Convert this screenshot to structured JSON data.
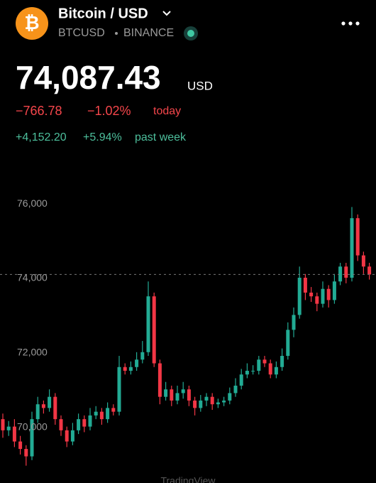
{
  "header": {
    "logo": "₿",
    "title": "Bitcoin / USD",
    "symbol": "BTCUSD",
    "exchange": "BINANCE",
    "price": {
      "value": 74087.43,
      "label": "74,087.43"
    },
    "currency": "USD",
    "day_change": "−766.78",
    "day_change_pct": "−1.02%",
    "day_label": "today",
    "week_change": "+4,152.20",
    "week_change_pct": "+5.94%",
    "week_label": "past week"
  },
  "chart_data": {
    "type": "candlestick",
    "up_color": "#22ab94",
    "down_color": "#f23645",
    "ylim": [
      68500,
      76500
    ],
    "yticks": [
      {
        "value": 70000,
        "label": "70,000"
      },
      {
        "value": 72000,
        "label": "72,000"
      },
      {
        "value": 74000,
        "label": "74,000"
      },
      {
        "value": 76000,
        "label": "76,000"
      }
    ],
    "open": [
      70200,
      69900,
      70000,
      69600,
      69400,
      69200,
      70200,
      70600,
      70500,
      70800,
      70200,
      69900,
      69600,
      69900,
      70200,
      70000,
      70300,
      70400,
      70200,
      70500,
      70400,
      71600,
      71500,
      71600,
      71800,
      72000,
      73500,
      71700,
      70800,
      71000,
      70700,
      70900,
      71000,
      70700,
      70500,
      70700,
      70800,
      70600,
      70650,
      70700,
      70900,
      71100,
      71400,
      71500,
      71500,
      71800,
      71700,
      71400,
      71600,
      71900,
      72600,
      73000,
      74000,
      73600,
      73500,
      73300,
      73700,
      73400,
      73900,
      74300,
      74000,
      75600,
      74600,
      74300
    ],
    "high": [
      70350,
      70150,
      70200,
      69750,
      69500,
      70400,
      70800,
      70700,
      71000,
      70900,
      70300,
      70000,
      70100,
      70350,
      70300,
      70500,
      70550,
      70500,
      70650,
      70600,
      71900,
      71700,
      71750,
      72000,
      72300,
      73900,
      73600,
      71800,
      71200,
      71100,
      71100,
      71200,
      71100,
      70800,
      70850,
      70900,
      70900,
      70750,
      70800,
      71050,
      71300,
      71550,
      71700,
      71650,
      71900,
      71900,
      71800,
      71750,
      72100,
      72800,
      73200,
      74300,
      74100,
      73750,
      73600,
      73900,
      73800,
      74100,
      74400,
      74400,
      75900,
      75700,
      74700,
      74400
    ],
    "low": [
      69700,
      69750,
      69450,
      69250,
      68950,
      69100,
      70100,
      70350,
      70400,
      70050,
      69750,
      69450,
      69500,
      69800,
      69850,
      69900,
      70200,
      70050,
      70100,
      70300,
      70300,
      71400,
      71400,
      71500,
      71700,
      71900,
      71600,
      70600,
      70700,
      70550,
      70600,
      70750,
      70550,
      70300,
      70400,
      70550,
      70450,
      70500,
      70550,
      70600,
      70800,
      71000,
      71300,
      71400,
      71400,
      71600,
      71300,
      71300,
      71500,
      71800,
      72400,
      72900,
      73400,
      73350,
      73100,
      73200,
      73200,
      73300,
      73800,
      73850,
      73900,
      74450,
      74100,
      73950
    ],
    "close": [
      69900,
      70000,
      69600,
      69400,
      69200,
      70200,
      70600,
      70500,
      70800,
      70200,
      69900,
      69600,
      69900,
      70200,
      70000,
      70300,
      70400,
      70200,
      70500,
      70400,
      71600,
      71500,
      71600,
      71800,
      72000,
      73500,
      71700,
      70800,
      71000,
      70700,
      70900,
      71000,
      70700,
      70500,
      70700,
      70800,
      70600,
      70650,
      70700,
      70900,
      71100,
      71400,
      71500,
      71500,
      71800,
      71700,
      71400,
      71600,
      71900,
      72600,
      73000,
      74000,
      73600,
      73500,
      73300,
      73700,
      73400,
      73900,
      74300,
      74000,
      75600,
      74600,
      74300,
      74087.43
    ]
  },
  "watermark": "TradingView"
}
